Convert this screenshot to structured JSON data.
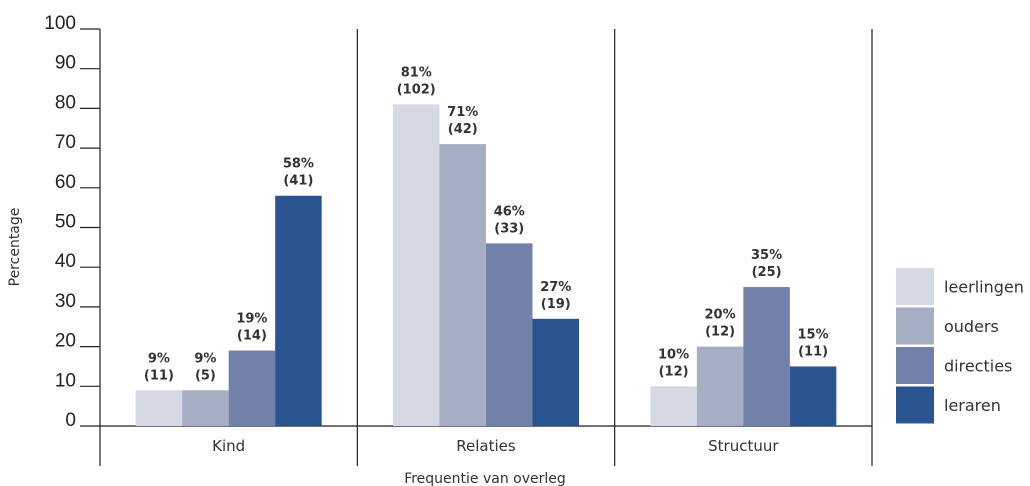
{
  "chart_data": {
    "type": "bar",
    "title": "",
    "xlabel": "Frequentie van overleg",
    "ylabel": "Percentage",
    "ylim": [
      0,
      100
    ],
    "yticks": [
      0,
      10,
      20,
      30,
      40,
      50,
      60,
      70,
      80,
      90,
      100
    ],
    "grid": false,
    "legend_position": "right",
    "categories": [
      "Kind",
      "Relaties",
      "Structuur"
    ],
    "series": [
      {
        "name": "leerlingen",
        "color": "#d6d9e3",
        "values": [
          9,
          81,
          10
        ],
        "labels": [
          "9%",
          "81%",
          "10%"
        ],
        "counts": [
          "(11)",
          "(102)",
          "(12)"
        ]
      },
      {
        "name": "ouders",
        "color": "#a6aec4",
        "values": [
          9,
          71,
          20
        ],
        "labels": [
          "9%",
          "71%",
          "20%"
        ],
        "counts": [
          "(5)",
          "(42)",
          "(12)"
        ]
      },
      {
        "name": "directies",
        "color": "#7181a9",
        "values": [
          19,
          46,
          35
        ],
        "labels": [
          "19%",
          "46%",
          "35%"
        ],
        "counts": [
          "(14)",
          "(33)",
          "(25)"
        ]
      },
      {
        "name": "leraren",
        "color": "#2a5490",
        "values": [
          58,
          27,
          15
        ],
        "labels": [
          "58%",
          "27%",
          "15%"
        ],
        "counts": [
          "(41)",
          "(19)",
          "(11)"
        ]
      }
    ]
  }
}
